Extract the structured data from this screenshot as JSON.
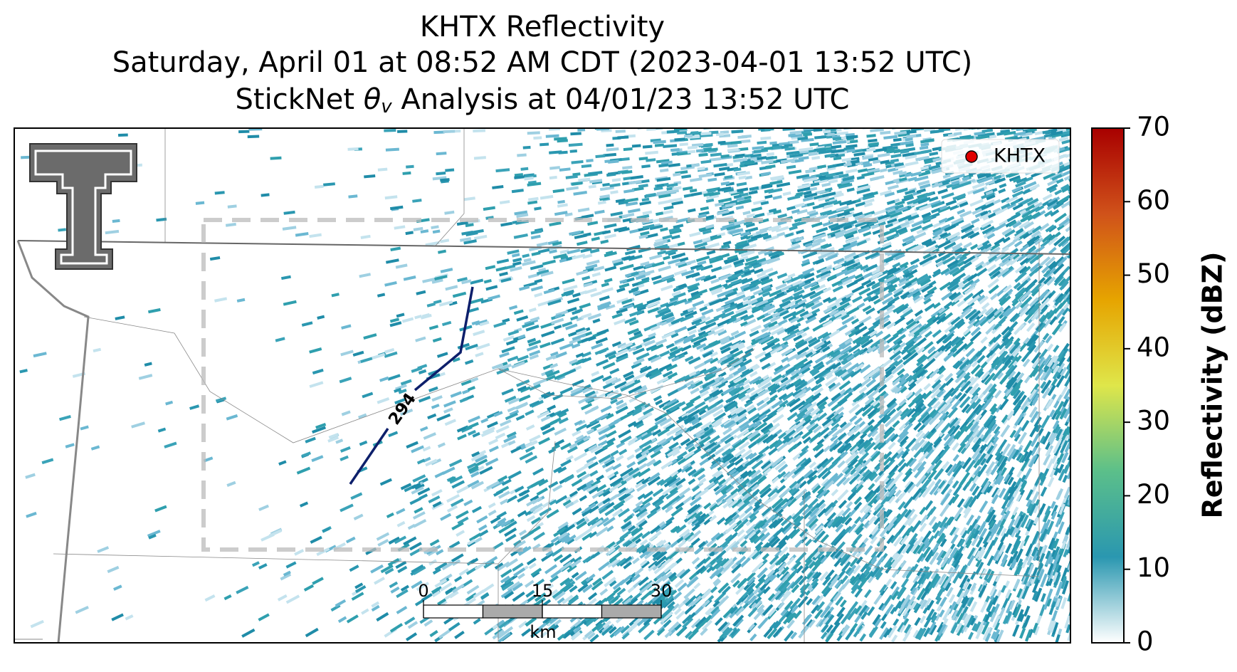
{
  "title": {
    "line1": "KHTX Reflectivity",
    "line2": "Saturday, April 01 at 08:52 AM CDT (2023-04-01 13:52 UTC)",
    "line3_before": "StickNet ",
    "line3_symbol": "θ",
    "line3_subscript": "v",
    "line3_after": " Analysis at 04/01/23 13:52 UTC"
  },
  "legend": {
    "label": "KHTX",
    "color": "#e00000"
  },
  "contour": {
    "label": "294",
    "color": "#0d1f6b"
  },
  "scale_bar": {
    "ticks": [
      0,
      15,
      30
    ],
    "unit": "km"
  },
  "colorbar": {
    "label": "Reflectivity (dBZ)",
    "lim": [
      0,
      70
    ],
    "ticks": [
      0,
      10,
      20,
      30,
      40,
      50,
      60,
      70
    ],
    "colors": [
      "#ffffff",
      "#2a97b0",
      "#5bbf8a",
      "#dfe64a",
      "#e6a400",
      "#d0521a",
      "#a80000"
    ]
  }
}
